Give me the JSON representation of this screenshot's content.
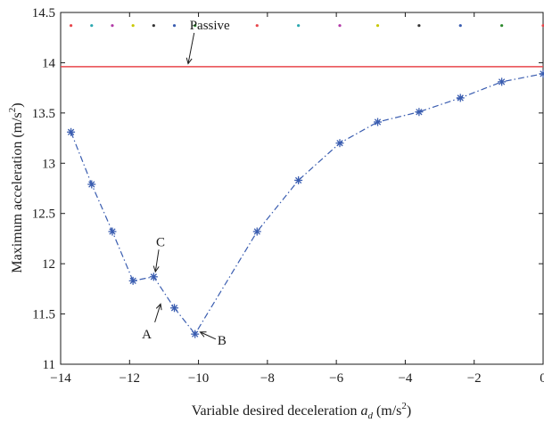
{
  "chart_data": {
    "type": "line",
    "xlabel": {
      "text": "Variable desired deceleration ",
      "var": "a",
      "sub": "d",
      "unit": " (m/s",
      "sup": "2",
      "close": ")"
    },
    "ylabel": {
      "text": "Maximum acceleration (m/s",
      "sup": "2",
      "close": ")"
    },
    "xlim": [
      -14,
      0
    ],
    "ylim": [
      11,
      14.5
    ],
    "xticks": [
      -14,
      -12,
      -10,
      -8,
      -6,
      -4,
      -2,
      0
    ],
    "xtick_labels": [
      "−14",
      "−12",
      "−10",
      "−8",
      "−6",
      "−4",
      "−2",
      "0"
    ],
    "yticks": [
      11,
      11.5,
      12,
      12.5,
      13,
      13.5,
      14,
      14.5
    ],
    "ytick_labels": [
      "11",
      "11.5",
      "12",
      "12.5",
      "13",
      "13.5",
      "14",
      "14.5"
    ],
    "grid": false,
    "series": [
      {
        "style": "dash-dot",
        "marker": "asterisk",
        "color": "#3a5db0",
        "x": [
          -13.7,
          -13.1,
          -12.5,
          -11.9,
          -11.3,
          -10.7,
          -10.1,
          -8.3,
          -7.1,
          -5.9,
          -4.8,
          -3.6,
          -2.4,
          -1.2,
          0
        ],
        "y": [
          13.31,
          12.79,
          12.32,
          11.83,
          11.87,
          11.56,
          11.3,
          12.32,
          12.83,
          13.2,
          13.41,
          13.51,
          13.65,
          13.81,
          13.89
        ]
      },
      {
        "name": "Passive",
        "style": "solid",
        "color": "#e8474c",
        "x": [
          -14,
          0
        ],
        "y": [
          13.96,
          13.96
        ]
      }
    ],
    "dots": {
      "y": 14.37,
      "x": [
        -13.7,
        -13.1,
        -12.5,
        -11.9,
        -11.3,
        -10.7,
        -10.1,
        -8.3,
        -7.1,
        -5.9,
        -4.8,
        -3.6,
        -2.4,
        -1.2,
        0
      ],
      "colors": [
        "#e8474c",
        "#2ba8b0",
        "#b23aa8",
        "#c8c800",
        "#333333",
        "#3a5db0",
        "#2e8a2e",
        "#e8474c",
        "#2ba8b0",
        "#b23aa8",
        "#c8c800",
        "#333333",
        "#3a5db0",
        "#2e8a2e",
        "#e8474c"
      ]
    },
    "annotations": [
      {
        "label": "Passive",
        "at": [
          -10.1,
          14.35
        ],
        "arrow_to": [
          -10.3,
          13.99
        ]
      },
      {
        "label": "C",
        "at": [
          -11.1,
          12.22
        ],
        "arrow_to": [
          -11.25,
          11.92
        ]
      },
      {
        "label": "A",
        "at": [
          -11.5,
          11.4
        ],
        "arrow_to": [
          -11.1,
          11.6
        ]
      },
      {
        "label": "B",
        "at": [
          -9.5,
          11.25
        ],
        "arrow_to": [
          -9.95,
          11.32
        ]
      }
    ]
  }
}
